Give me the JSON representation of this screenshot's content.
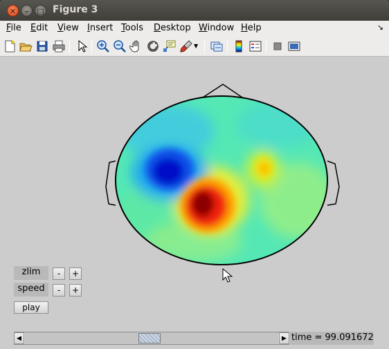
{
  "window": {
    "title": "Figure 3"
  },
  "menu": {
    "items": [
      {
        "label": "File",
        "mnemonic": "F",
        "rest": "ile"
      },
      {
        "label": "Edit",
        "mnemonic": "E",
        "rest": "dit"
      },
      {
        "label": "View",
        "mnemonic": "V",
        "rest": "iew"
      },
      {
        "label": "Insert",
        "mnemonic": "I",
        "rest": "nsert"
      },
      {
        "label": "Tools",
        "mnemonic": "T",
        "rest": "ools"
      },
      {
        "label": "Desktop",
        "mnemonic": "D",
        "rest": "esktop"
      },
      {
        "label": "Window",
        "mnemonic": "W",
        "rest": "indow"
      },
      {
        "label": "Help",
        "mnemonic": "H",
        "rest": "elp"
      }
    ]
  },
  "toolbar": {
    "icons": [
      "new-figure-icon",
      "open-file-icon",
      "save-icon",
      "print-icon",
      "edit-plot-arrow-icon",
      "zoom-in-icon",
      "zoom-out-icon",
      "pan-hand-icon",
      "rotate-3d-icon",
      "data-cursor-icon",
      "brush-icon",
      "brush-dropdown-icon",
      "link-plot-icon",
      "colorbar-icon",
      "legend-icon",
      "hide-plot-tools-icon",
      "show-plot-tools-icon"
    ]
  },
  "controls": {
    "zlim_label": "zlim",
    "speed_label": "speed",
    "minus": "-",
    "plus": "+",
    "play_label": "play"
  },
  "slider": {
    "value_fraction": 0.49
  },
  "status": {
    "time_text": "time = 99.091672"
  },
  "colors": {
    "titlebar": "#3f3e3a",
    "figure_bg": "#cccccc",
    "close_button": "#e05a2a"
  }
}
